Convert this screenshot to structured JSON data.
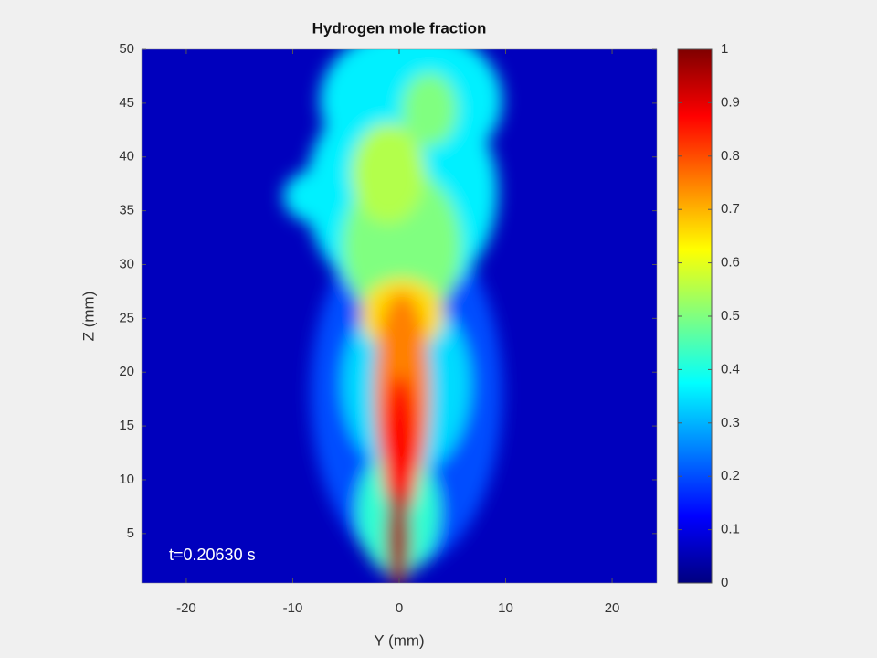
{
  "chart_data": {
    "type": "heatmap",
    "title": "Hydrogen mole fraction",
    "xlabel": "Y (mm)",
    "ylabel": "Z (mm)",
    "xlim": [
      -24.2,
      24.2
    ],
    "xticks": [
      -20,
      -10,
      0,
      10,
      20
    ],
    "ylim": [
      0.4,
      50
    ],
    "yticks": [
      5,
      10,
      15,
      20,
      25,
      30,
      35,
      40,
      45,
      50
    ],
    "colormap": "jet",
    "clim": [
      0,
      1
    ],
    "cticks": [
      0,
      {
        "value": 0.1,
        "label": "0.1"
      },
      {
        "value": 0.2,
        "label": "0.2"
      },
      {
        "value": 0.3,
        "label": "0.3"
      },
      {
        "value": 0.4,
        "label": "0.4"
      },
      {
        "value": 0.5,
        "label": "0.5"
      },
      {
        "value": 0.6,
        "label": "0.6"
      },
      {
        "value": 0.7,
        "label": "0.7"
      },
      {
        "value": 0.8,
        "label": "0.8"
      },
      {
        "value": 0.9,
        "label": "0.9"
      },
      1
    ],
    "annotation": "t=0.20630 s"
  }
}
